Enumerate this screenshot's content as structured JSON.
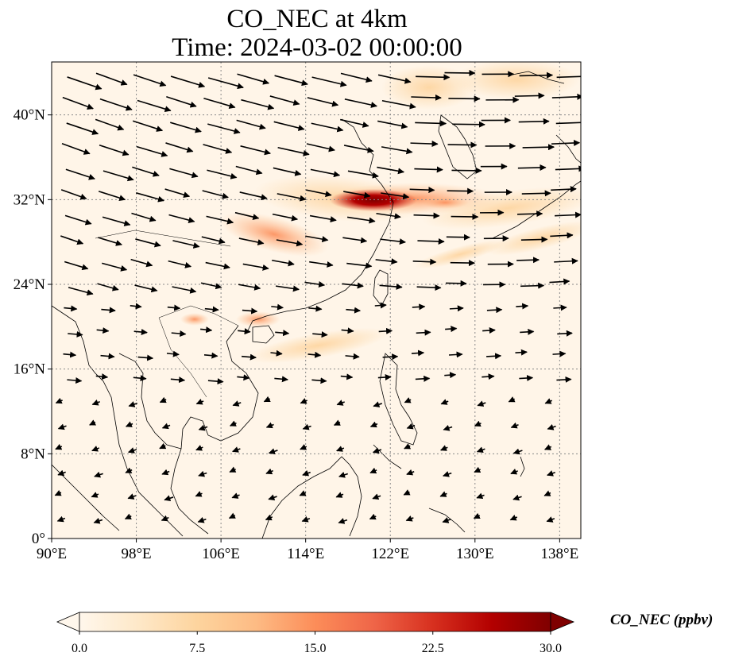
{
  "title": {
    "line1": "CO_NEC at 4km",
    "line2": "Time: 2024-03-02 00:00:00"
  },
  "map": {
    "lon_range": [
      90,
      140
    ],
    "lat_range": [
      0,
      45
    ],
    "x_ticks": [
      "90°E",
      "98°E",
      "106°E",
      "114°E",
      "122°E",
      "130°E",
      "138°E"
    ],
    "y_ticks": [
      "0°",
      "8°N",
      "16°N",
      "24°N",
      "32°N",
      "40°N"
    ],
    "x_tick_values": [
      90,
      98,
      106,
      114,
      122,
      130,
      138
    ],
    "y_tick_values": [
      0,
      8,
      16,
      24,
      32,
      40
    ],
    "gridlines": true,
    "coastlines": true,
    "wind_vectors": true,
    "hotspot_region": {
      "lon": 122,
      "lat": 32,
      "peak_value": 30
    }
  },
  "colorbar": {
    "label": "CO_NEC (ppbv)",
    "min": 0.0,
    "max": 30.0,
    "ticks": [
      "0.0",
      "7.5",
      "15.0",
      "22.5",
      "30.0"
    ],
    "tick_values": [
      0,
      7.5,
      15,
      22.5,
      30
    ],
    "extend": "both",
    "colormap": "OrRd",
    "colors": [
      "#fff7ec",
      "#fee8c8",
      "#fdd49e",
      "#fdbb84",
      "#fc8d59",
      "#ef6548",
      "#d7301f",
      "#b30000",
      "#7f0000"
    ]
  }
}
